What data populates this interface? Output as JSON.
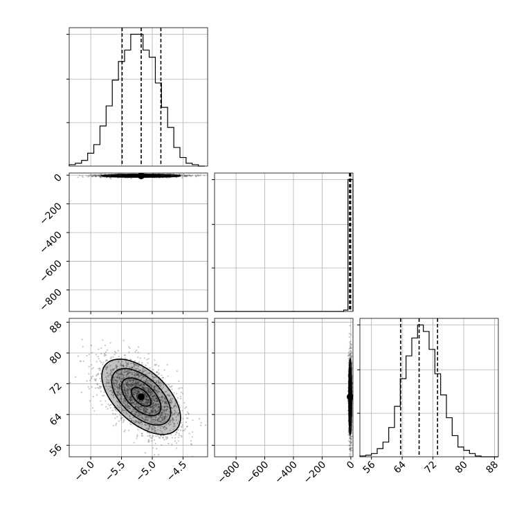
{
  "chart_data": {
    "type": "corner",
    "grid": true,
    "parameters": [
      "",
      "",
      ""
    ],
    "axes": {
      "p0": {
        "lim": [
          -6.35,
          -4.1
        ],
        "ticks": [
          -6.0,
          -5.5,
          -5.0,
          -4.5
        ],
        "tick_labels": [
          "−6.0",
          "−5.5",
          "−5.0",
          "−4.5"
        ]
      },
      "p1": {
        "lim": [
          -950,
          15
        ],
        "ticks": [
          -800,
          -600,
          -400,
          -200,
          0
        ],
        "tick_labels": [
          "−800",
          "−600",
          "−400",
          "−200",
          "0"
        ]
      },
      "p2": {
        "lim": [
          53,
          89
        ],
        "ticks": [
          56,
          64,
          72,
          80,
          88
        ],
        "tick_labels": [
          "56",
          "64",
          "72",
          "80",
          "88"
        ]
      }
    },
    "histograms": [
      {
        "param": "p0",
        "bins": [
          -6.35,
          -6.25,
          -6.15,
          -6.05,
          -5.95,
          -5.85,
          -5.75,
          -5.65,
          -5.55,
          -5.45,
          -5.35,
          -5.25,
          -5.15,
          -5.05,
          -4.95,
          -4.85,
          -4.75,
          -4.65,
          -4.55,
          -4.45,
          -4.35,
          -4.25,
          -4.15
        ],
        "counts": [
          0.01,
          0.02,
          0.04,
          0.09,
          0.15,
          0.28,
          0.42,
          0.6,
          0.73,
          0.81,
          0.92,
          0.92,
          0.81,
          0.76,
          0.58,
          0.41,
          0.27,
          0.13,
          0.06,
          0.02,
          0.01,
          0.0
        ],
        "quantiles": [
          -5.49,
          -5.18,
          -4.86
        ]
      },
      {
        "param": "p1",
        "bins": [
          -950,
          -900,
          -850,
          -800,
          -750,
          -700,
          -650,
          -600,
          -550,
          -500,
          -450,
          -400,
          -350,
          -300,
          -250,
          -200,
          -150,
          -100,
          -50,
          -20,
          0,
          15
        ],
        "counts": [
          0,
          0,
          0,
          0,
          0,
          0,
          0,
          0,
          0,
          0,
          0,
          0,
          0,
          0,
          0,
          0,
          0,
          0,
          0.01,
          0.97,
          0.97
        ],
        "quantiles": [
          -9,
          -4,
          -1
        ]
      },
      {
        "param": "p2",
        "bins": [
          53,
          54.5,
          56,
          57.5,
          59,
          60.5,
          62,
          63.5,
          65,
          66.5,
          68,
          69.5,
          71,
          72.5,
          74,
          75.5,
          77,
          78.5,
          80,
          81.5,
          83,
          84.5,
          86,
          87.5,
          89
        ],
        "counts": [
          0.005,
          0.01,
          0.02,
          0.05,
          0.09,
          0.18,
          0.31,
          0.48,
          0.62,
          0.73,
          0.81,
          0.77,
          0.66,
          0.51,
          0.38,
          0.24,
          0.13,
          0.06,
          0.04,
          0.02,
          0.005,
          0.0,
          0.0,
          0.0
        ],
        "quantiles": [
          63.6,
          68.4,
          73.2
        ]
      }
    ],
    "scatters": [
      {
        "x_param": "p0",
        "y_param": "p1",
        "x_center": -5.18,
        "x_sd": 0.32,
        "y_center": -4,
        "y_sd": 5,
        "rho": 0.0,
        "contour_levels": [
          0.5,
          1.0,
          1.5,
          2.0
        ]
      },
      {
        "x_param": "p0",
        "y_param": "p2",
        "x_center": -5.18,
        "x_sd": 0.32,
        "y_center": 68.6,
        "y_sd": 4.9,
        "rho": -0.55,
        "contour_levels": [
          0.5,
          1.0,
          1.5,
          2.0
        ]
      },
      {
        "x_param": "p1",
        "y_param": "p2",
        "x_center": -4,
        "x_sd": 5,
        "y_center": 68.6,
        "y_sd": 4.9,
        "rho": 0.0,
        "contour_levels": [
          0.5,
          1.0,
          1.5,
          2.0
        ]
      }
    ]
  },
  "colors": {
    "line": "#000000",
    "grid": "#b0b0b0",
    "points": "#555555"
  }
}
